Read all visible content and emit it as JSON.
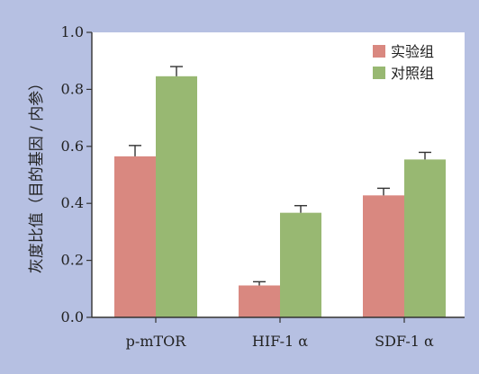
{
  "chart_data": {
    "type": "bar",
    "categories": [
      "p-mTOR",
      "HIF-1 α",
      "SDF-1 α"
    ],
    "series": [
      {
        "name": "实验组",
        "values": [
          0.565,
          0.112,
          0.428
        ],
        "errors": [
          0.038,
          0.013,
          0.025
        ],
        "color": "#d98880"
      },
      {
        "name": "对照组",
        "values": [
          0.846,
          0.367,
          0.554
        ],
        "errors": [
          0.034,
          0.025,
          0.025
        ],
        "color": "#98b872"
      }
    ],
    "title": "",
    "xlabel": "",
    "ylabel": "灰度比值（目的基因 / 内参）",
    "ylim": [
      0,
      1.0
    ],
    "yticks": [
      "0.0",
      "0.2",
      "0.4",
      "0.6",
      "0.8",
      "1.0"
    ],
    "grid": false,
    "legend_position": "top-right"
  }
}
